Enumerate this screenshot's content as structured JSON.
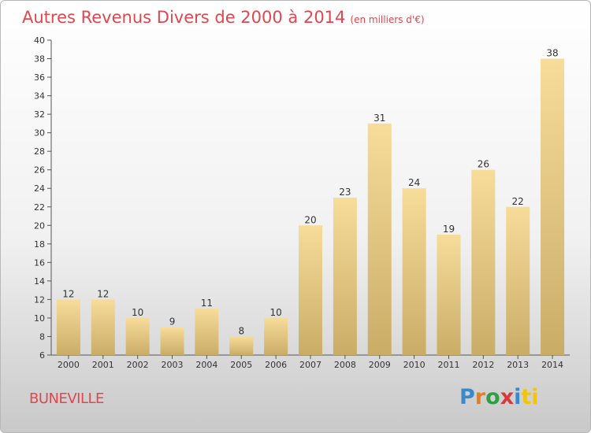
{
  "header": {
    "title": "Autres Revenus Divers de 2000 à 2014",
    "unit": "(en milliers d'€)"
  },
  "footer": {
    "commune": "BUNEVILLE",
    "logo": [
      "P",
      "r",
      "o",
      "x",
      "i",
      "ti"
    ]
  },
  "colors": {
    "title": "#e0474f",
    "bar_light": "#f7dc9a",
    "bar_dark": "#c9ad67"
  },
  "chart_data": {
    "type": "bar",
    "title": "Autres Revenus Divers de 2000 à 2014",
    "xlabel": "",
    "ylabel": "",
    "categories": [
      "2000",
      "2001",
      "2002",
      "2003",
      "2004",
      "2005",
      "2006",
      "2007",
      "2008",
      "2009",
      "2010",
      "2011",
      "2012",
      "2013",
      "2014"
    ],
    "values": [
      12,
      12,
      10,
      9,
      11,
      8,
      10,
      20,
      23,
      31,
      24,
      19,
      26,
      22,
      38
    ],
    "ylim": [
      6,
      40
    ],
    "yticks": [
      6,
      8,
      10,
      12,
      14,
      16,
      18,
      20,
      22,
      24,
      26,
      28,
      30,
      32,
      34,
      36,
      38,
      40
    ],
    "grid": false,
    "legend": "none"
  }
}
